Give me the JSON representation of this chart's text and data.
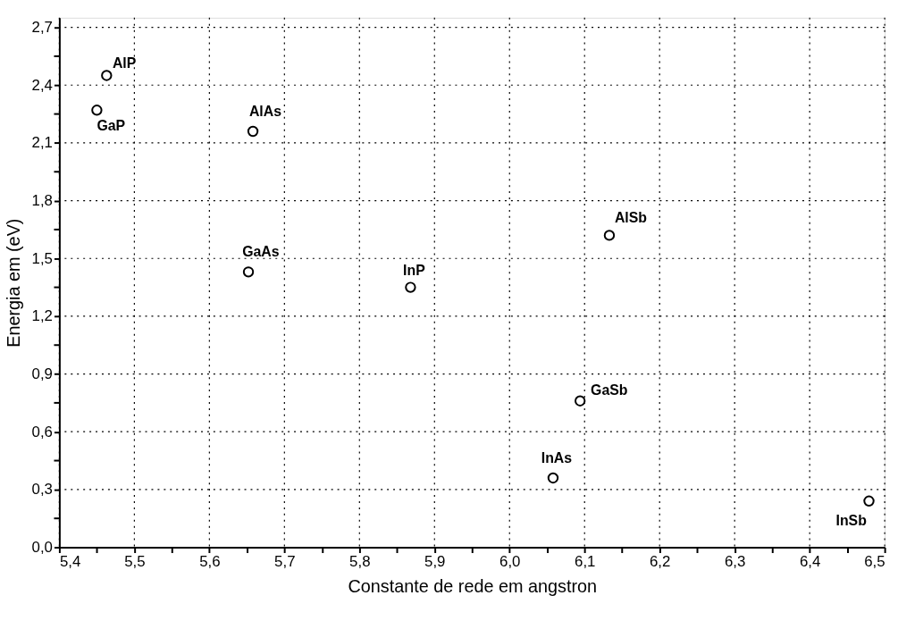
{
  "chart_data": {
    "type": "scatter",
    "xlabel": "Constante de rede em angstron",
    "ylabel": "Energia em (eV)",
    "x": [
      5.463,
      5.45,
      5.658,
      5.652,
      5.868,
      6.133,
      6.094,
      6.058,
      6.479
    ],
    "series": [
      {
        "color": "#000000",
        "values": [
          2.45,
          2.27,
          2.16,
          1.43,
          1.35,
          1.62,
          0.76,
          0.36,
          0.24
        ]
      }
    ],
    "marker": "circle",
    "grid": true,
    "legend": false,
    "xlim": [
      5.4,
      6.5
    ],
    "ylim": [
      0,
      2.75
    ],
    "xticks": [
      {
        "value": 5.4,
        "label": "5,4"
      },
      {
        "value": 5.45,
        "label": null
      },
      {
        "value": 5.5,
        "label": "5,5"
      },
      {
        "value": 5.55,
        "label": null
      },
      {
        "value": 5.6,
        "label": "5,6"
      },
      {
        "value": 5.65,
        "label": null
      },
      {
        "value": 5.7,
        "label": "5,7"
      },
      {
        "value": 5.75,
        "label": null
      },
      {
        "value": 5.8,
        "label": "5,8"
      },
      {
        "value": 5.85,
        "label": null
      },
      {
        "value": 5.9,
        "label": "5,9"
      },
      {
        "value": 5.95,
        "label": null
      },
      {
        "value": 6.0,
        "label": "6,0"
      },
      {
        "value": 6.05,
        "label": null
      },
      {
        "value": 6.1,
        "label": "6,1"
      },
      {
        "value": 6.15,
        "label": null
      },
      {
        "value": 6.2,
        "label": "6,2"
      },
      {
        "value": 6.25,
        "label": null
      },
      {
        "value": 6.3,
        "label": "6,3"
      },
      {
        "value": 6.35,
        "label": null
      },
      {
        "value": 6.4,
        "label": "6,4"
      },
      {
        "value": 6.45,
        "label": null
      },
      {
        "value": 6.5,
        "label": "6,5"
      }
    ],
    "yticks": [
      {
        "value": 0,
        "label": "0,0"
      },
      {
        "value": 0.15,
        "label": null
      },
      {
        "value": 0.3,
        "label": "0,3"
      },
      {
        "value": 0.45,
        "label": null
      },
      {
        "value": 0.6,
        "label": "0,6"
      },
      {
        "value": 0.75,
        "label": null
      },
      {
        "value": 0.9,
        "label": "0,9"
      },
      {
        "value": 1.05,
        "label": null
      },
      {
        "value": 1.2,
        "label": "1,2"
      },
      {
        "value": 1.35,
        "label": null
      },
      {
        "value": 1.5,
        "label": "1,5"
      },
      {
        "value": 1.65,
        "label": null
      },
      {
        "value": 1.8,
        "label": "1,8"
      },
      {
        "value": 1.95,
        "label": null
      },
      {
        "value": 2.1,
        "label": "2,1"
      },
      {
        "value": 2.25,
        "label": null
      },
      {
        "value": 2.4,
        "label": "2,4"
      },
      {
        "value": 2.55,
        "label": null
      },
      {
        "value": 2.7,
        "label": "2,7"
      }
    ],
    "annotations": [
      {
        "text": "AlP",
        "x": 5.463,
        "y": 2.45
      },
      {
        "text": "GaP",
        "x": 5.45,
        "y": 2.27
      },
      {
        "text": "AlAs",
        "x": 5.658,
        "y": 2.16
      },
      {
        "text": "GaAs",
        "x": 5.652,
        "y": 1.43
      },
      {
        "text": "InP",
        "x": 5.868,
        "y": 1.35
      },
      {
        "text": "AlSb",
        "x": 6.133,
        "y": 1.62
      },
      {
        "text": "GaSb",
        "x": 6.094,
        "y": 0.76
      },
      {
        "text": "InAs",
        "x": 6.058,
        "y": 0.36
      },
      {
        "text": "InSb",
        "x": 6.479,
        "y": 0.24
      }
    ]
  }
}
